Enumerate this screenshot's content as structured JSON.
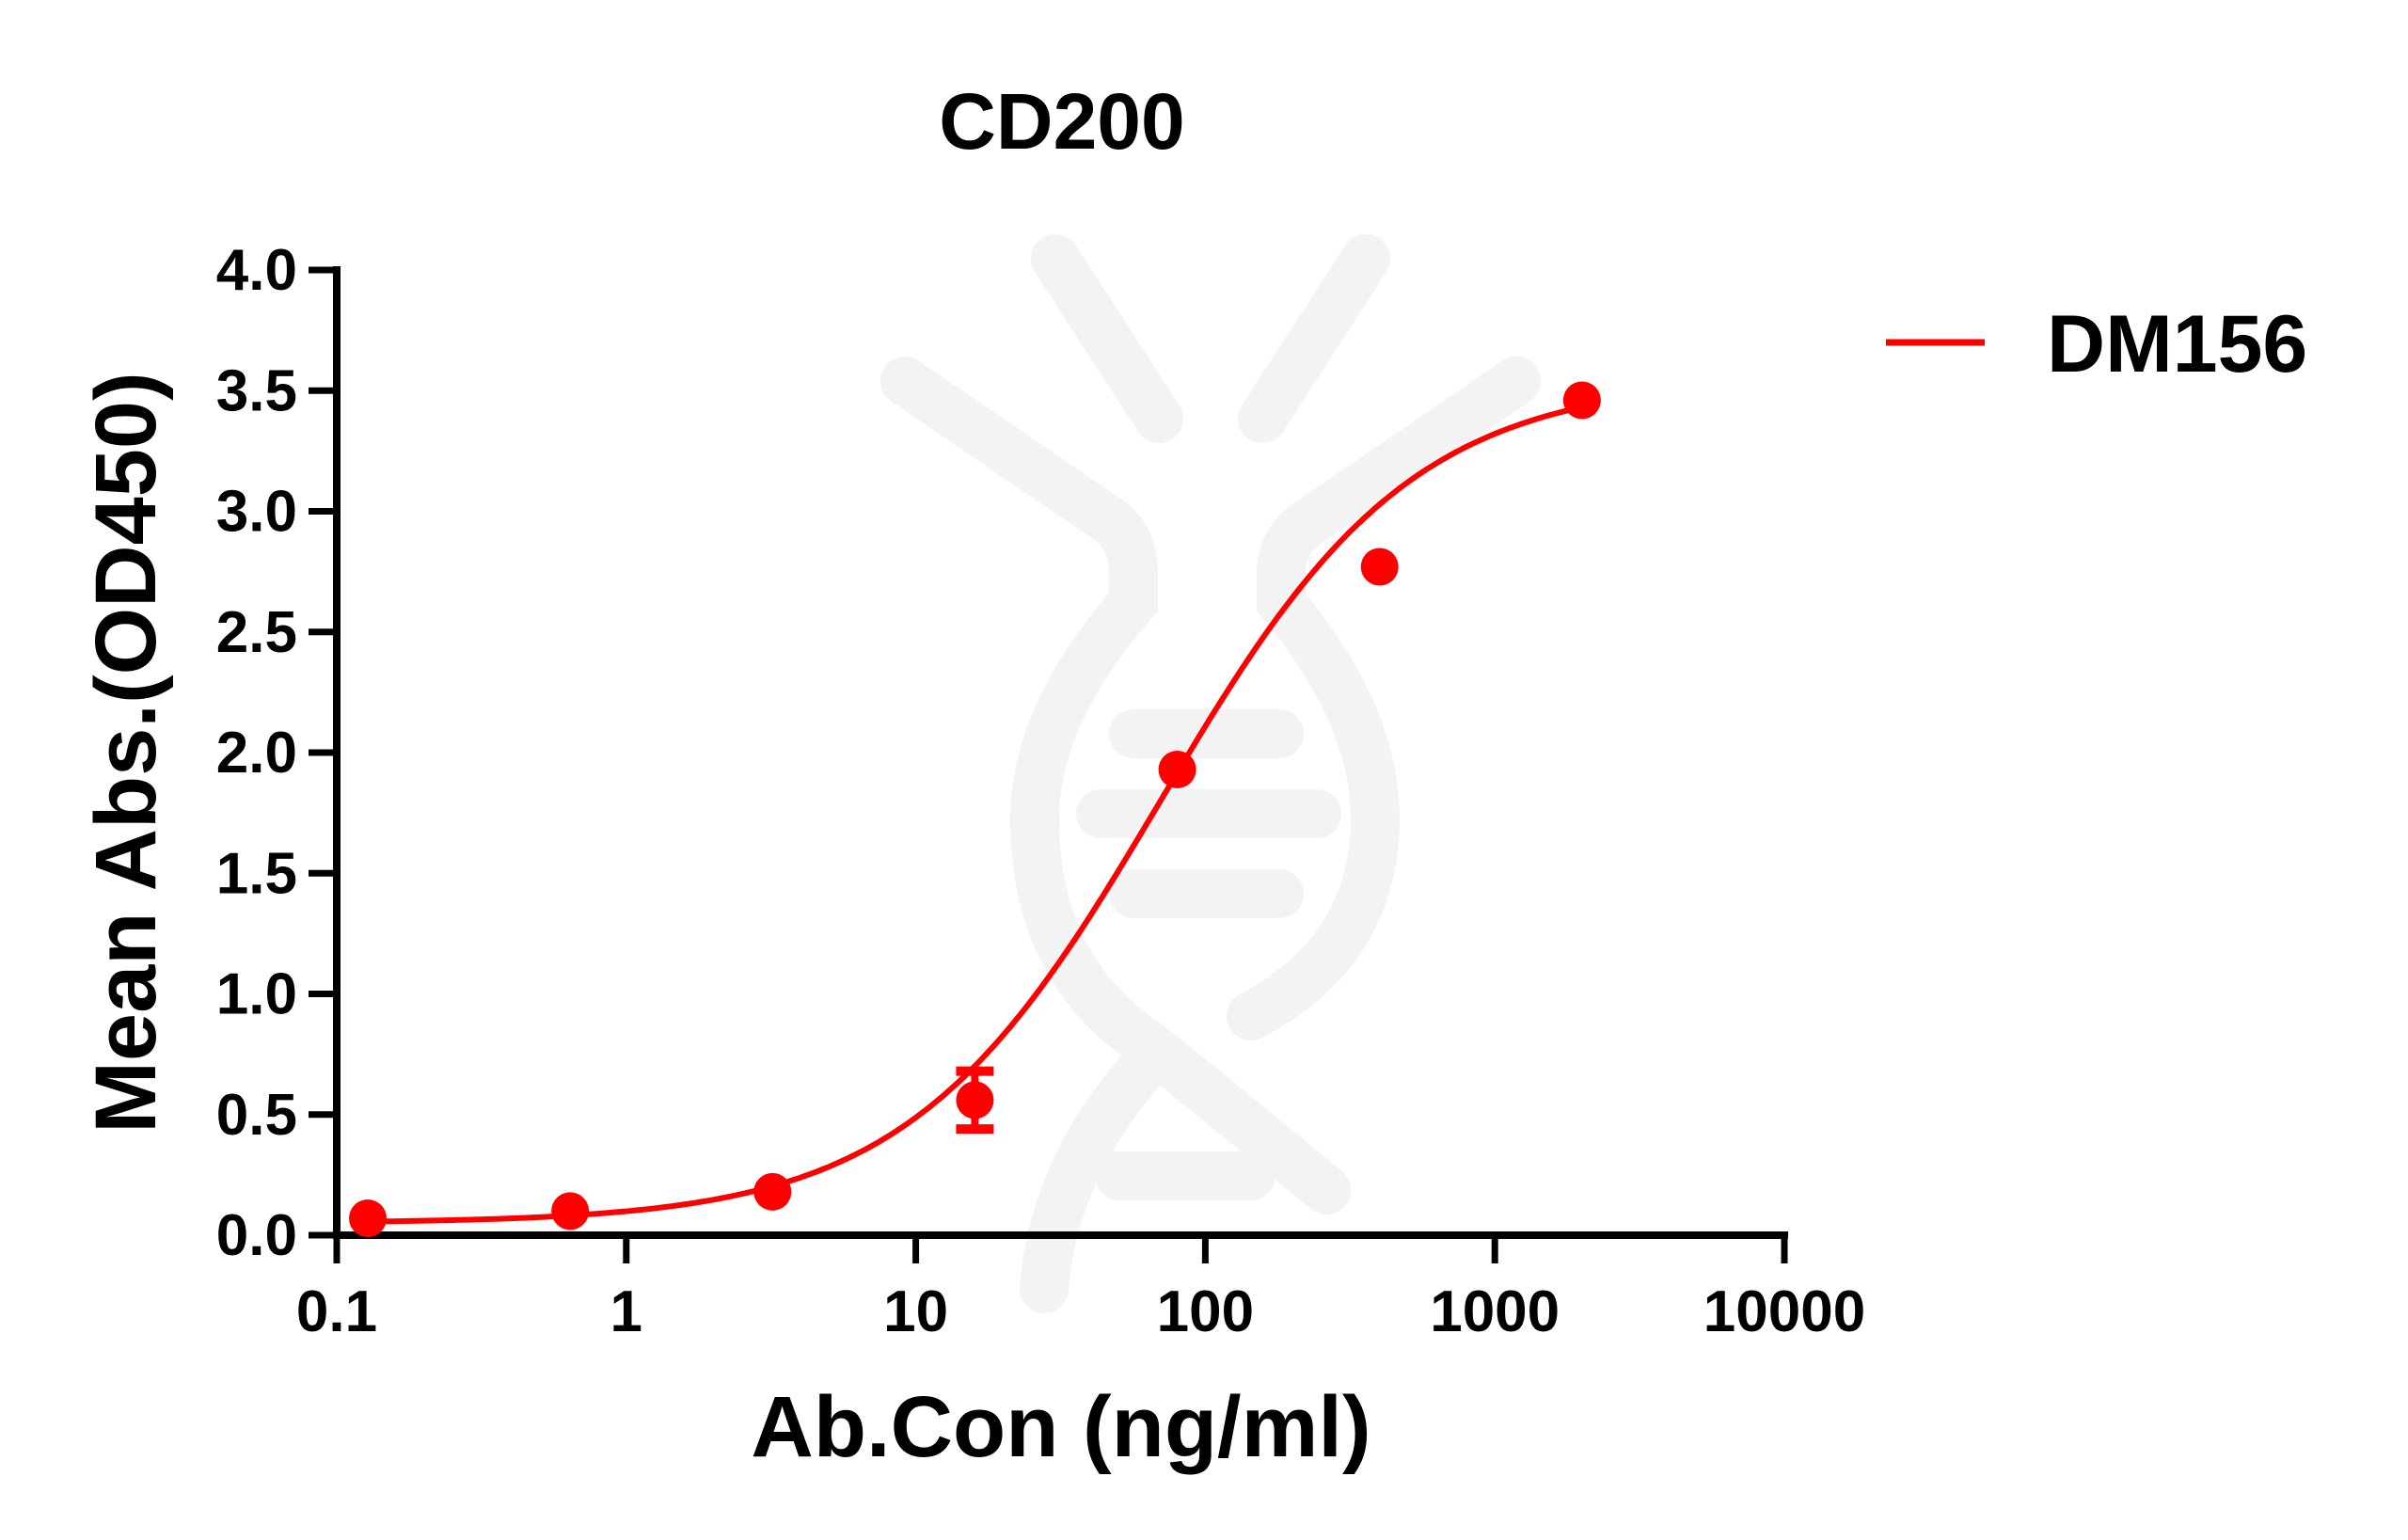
{
  "chart_data": {
    "type": "scatter",
    "title": "CD200",
    "xlabel": "Ab.Con (ng/ml)",
    "ylabel": "Mean Abs.(OD450)",
    "xscale": "log",
    "xlim": [
      0.1,
      10000
    ],
    "ylim": [
      0,
      4.0
    ],
    "xticks": [
      "0.1",
      "1",
      "10",
      "100",
      "1000",
      "10000"
    ],
    "yticks": [
      "0.0",
      "0.5",
      "1.0",
      "1.5",
      "2.0",
      "2.5",
      "3.0",
      "3.5",
      "4.0"
    ],
    "grid": false,
    "legend_position": "top-right",
    "series": [
      {
        "name": "DM156",
        "color": "#ff0000",
        "x": [
          0.128,
          0.64,
          3.2,
          16,
          80,
          400,
          2000
        ],
        "y": [
          0.07,
          0.1,
          0.18,
          0.56,
          1.93,
          2.77,
          3.46
        ],
        "error": [
          0.01,
          0.01,
          0.01,
          0.12,
          0.01,
          0.01,
          0.01
        ],
        "fit": {
          "model": "4PL",
          "bottom": 0.05,
          "top": 3.55,
          "ec50": 70,
          "hill": 1.0
        }
      }
    ]
  }
}
